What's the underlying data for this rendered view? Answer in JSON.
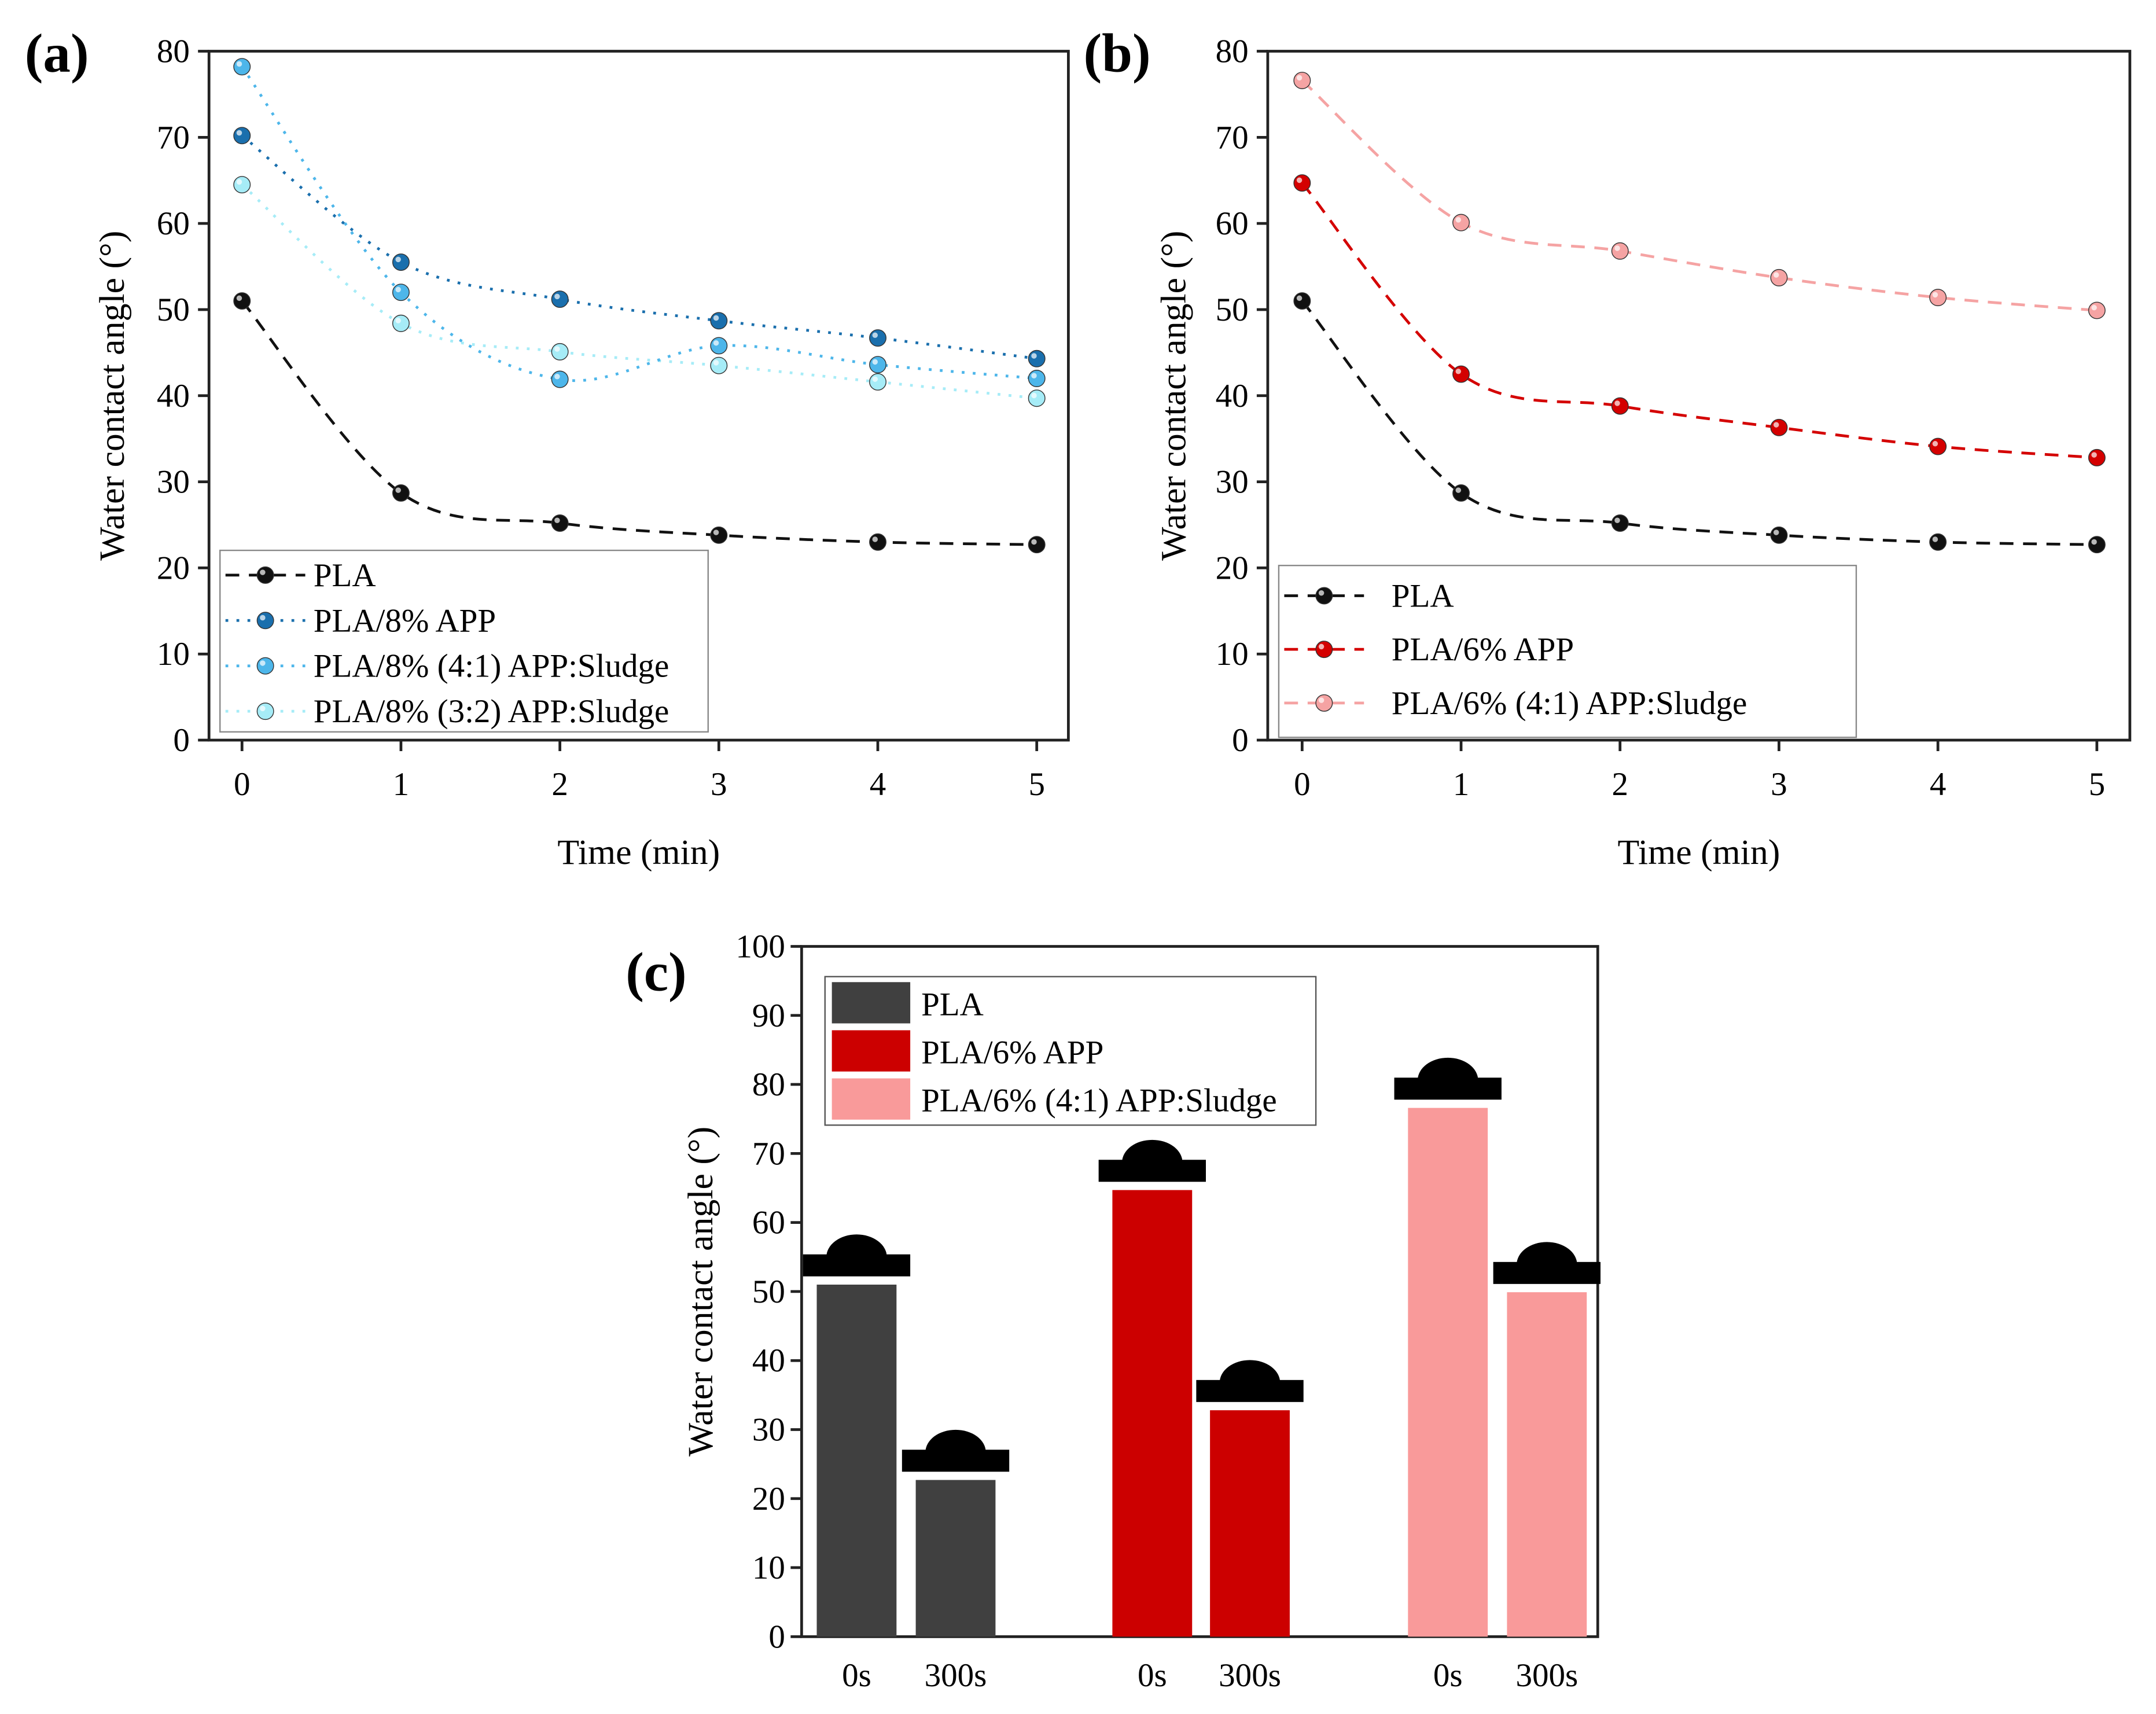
{
  "chart_data": [
    {
      "type": "line",
      "panel_label": "(a)",
      "xlabel": "Time (min)",
      "ylabel": "Water contact angle (°)",
      "xlim": [
        0,
        5
      ],
      "ylim": [
        0,
        80
      ],
      "x": [
        0,
        1,
        2,
        3,
        4,
        5
      ],
      "xticks": [
        "0",
        "1",
        "2",
        "3",
        "4",
        "5"
      ],
      "yticks": [
        "0",
        "10",
        "20",
        "30",
        "40",
        "50",
        "60",
        "70",
        "80"
      ],
      "legend_position": "bottom-left",
      "series": [
        {
          "name": "PLA",
          "color": "#111111",
          "dash": "dash",
          "values": [
            51.0,
            28.7,
            25.2,
            23.8,
            23.0,
            22.7
          ]
        },
        {
          "name": "PLA/8% APP",
          "color": "#1a6fad",
          "dash": "dot",
          "values": [
            70.2,
            55.5,
            51.2,
            48.7,
            46.7,
            44.3
          ]
        },
        {
          "name": "PLA/8% (4:1) APP:Sludge",
          "color": "#4db6ea",
          "dash": "dot",
          "values": [
            78.2,
            52.0,
            41.9,
            45.8,
            43.6,
            42.0
          ]
        },
        {
          "name": "PLA/8% (3:2) APP:Sludge",
          "color": "#a6ecf7",
          "dash": "dot",
          "values": [
            64.5,
            48.4,
            45.1,
            43.5,
            41.6,
            39.7
          ]
        }
      ]
    },
    {
      "type": "line",
      "panel_label": "(b)",
      "xlabel": "Time (min)",
      "ylabel": "Water contact angle (°)",
      "xlim": [
        0,
        5
      ],
      "ylim": [
        0,
        80
      ],
      "x": [
        0,
        1,
        2,
        3,
        4,
        5
      ],
      "xticks": [
        "0",
        "1",
        "2",
        "3",
        "4",
        "5"
      ],
      "yticks": [
        "0",
        "10",
        "20",
        "30",
        "40",
        "50",
        "60",
        "70",
        "80"
      ],
      "legend_position": "bottom-left",
      "series": [
        {
          "name": "PLA",
          "color": "#111111",
          "dash": "dash",
          "values": [
            51.0,
            28.7,
            25.2,
            23.8,
            23.0,
            22.7
          ]
        },
        {
          "name": "PLA/6% APP",
          "color": "#d40000",
          "dash": "dash",
          "values": [
            64.7,
            42.5,
            38.8,
            36.3,
            34.1,
            32.8
          ]
        },
        {
          "name": "PLA/6% (4:1) APP:Sludge",
          "color": "#f5a3a3",
          "dash": "dash",
          "values": [
            76.6,
            60.1,
            56.8,
            53.7,
            51.4,
            49.9
          ]
        }
      ]
    },
    {
      "type": "bar",
      "panel_label": "(c)",
      "xlabel": "",
      "ylabel": "Water contact angle (°)",
      "ylim": [
        0,
        100
      ],
      "yticks": [
        "0",
        "10",
        "20",
        "30",
        "40",
        "50",
        "60",
        "70",
        "80",
        "90",
        "100"
      ],
      "categories": [
        "0s",
        "300s"
      ],
      "legend_position": "top-left",
      "series": [
        {
          "name": "PLA",
          "color": "#404040",
          "values": [
            51.0,
            22.7
          ]
        },
        {
          "name": "PLA/6% APP",
          "color": "#cc0000",
          "values": [
            64.7,
            32.8
          ]
        },
        {
          "name": "PLA/6% (4:1) APP:Sludge",
          "color": "#f99a9a",
          "values": [
            76.6,
            49.9
          ]
        }
      ]
    }
  ]
}
